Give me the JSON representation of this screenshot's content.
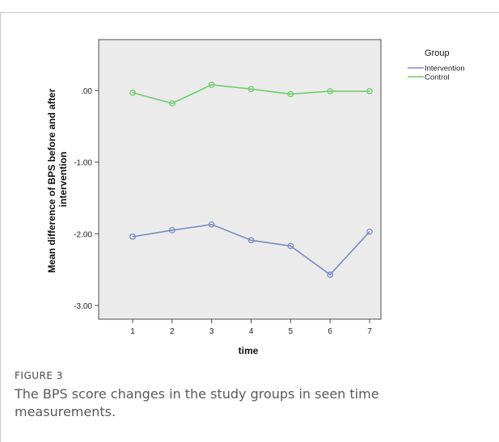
{
  "chart_data": {
    "type": "line",
    "x": [
      1,
      2,
      3,
      4,
      5,
      6,
      7
    ],
    "xlabel": "time",
    "ylabel": "Mean difference of BPS before and after intervention",
    "ylim": [
      -3.2,
      0.65
    ],
    "yticks": [
      ".00",
      "-1.00",
      "-2.00",
      "-3.00"
    ],
    "legend_title": "Group",
    "legend_position": "top-right, outside plot",
    "plot_background": "#ebebeb",
    "grid": false,
    "series": [
      {
        "name": "Intervention",
        "color": "#7b8cc4",
        "values": [
          -2.04,
          -1.95,
          -1.87,
          -2.09,
          -2.17,
          -2.57,
          -1.97
        ]
      },
      {
        "name": "Control",
        "color": "#6fce6f",
        "values": [
          -0.03,
          -0.18,
          0.08,
          0.02,
          -0.05,
          -0.01,
          -0.01
        ]
      }
    ]
  },
  "figure": {
    "label": "FIGURE 3",
    "caption": "The BPS score changes in the study groups in seen time measurements."
  }
}
